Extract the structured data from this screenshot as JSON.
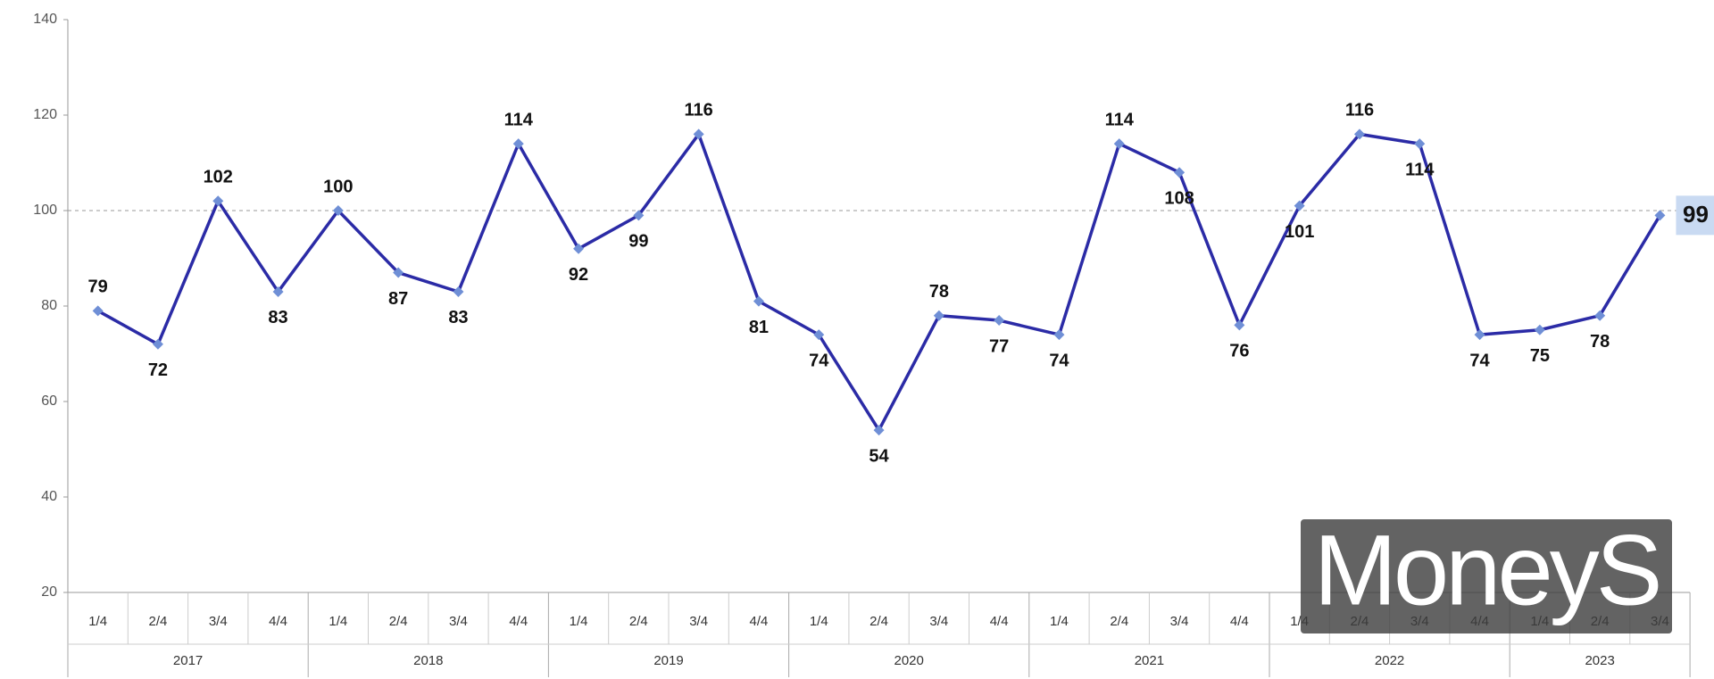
{
  "chart_data": {
    "type": "line",
    "groups": [
      {
        "label": "2017",
        "categories": [
          "1/4",
          "2/4",
          "3/4",
          "4/4"
        ]
      },
      {
        "label": "2018",
        "categories": [
          "1/4",
          "2/4",
          "3/4",
          "4/4"
        ]
      },
      {
        "label": "2019",
        "categories": [
          "1/4",
          "2/4",
          "3/4",
          "4/4"
        ]
      },
      {
        "label": "2020",
        "categories": [
          "1/4",
          "2/4",
          "3/4",
          "4/4"
        ]
      },
      {
        "label": "2021",
        "categories": [
          "1/4",
          "2/4",
          "3/4",
          "4/4"
        ]
      },
      {
        "label": "2022",
        "categories": [
          "1/4",
          "2/4",
          "3/4",
          "4/4"
        ]
      },
      {
        "label": "2023",
        "categories": [
          "1/4",
          "2/4",
          "3/4"
        ]
      }
    ],
    "values": [
      79,
      72,
      102,
      83,
      100,
      87,
      83,
      114,
      92,
      99,
      116,
      81,
      74,
      54,
      78,
      77,
      74,
      114,
      108,
      76,
      101,
      116,
      114,
      74,
      75,
      78,
      99
    ],
    "color": "#2b2ba6",
    "marker_color": "#6f8fd6",
    "ylim": [
      20,
      140
    ],
    "yticks": [
      20,
      40,
      60,
      80,
      100,
      120,
      140
    ],
    "reference_line": 100,
    "watermark": "MoneyS"
  }
}
